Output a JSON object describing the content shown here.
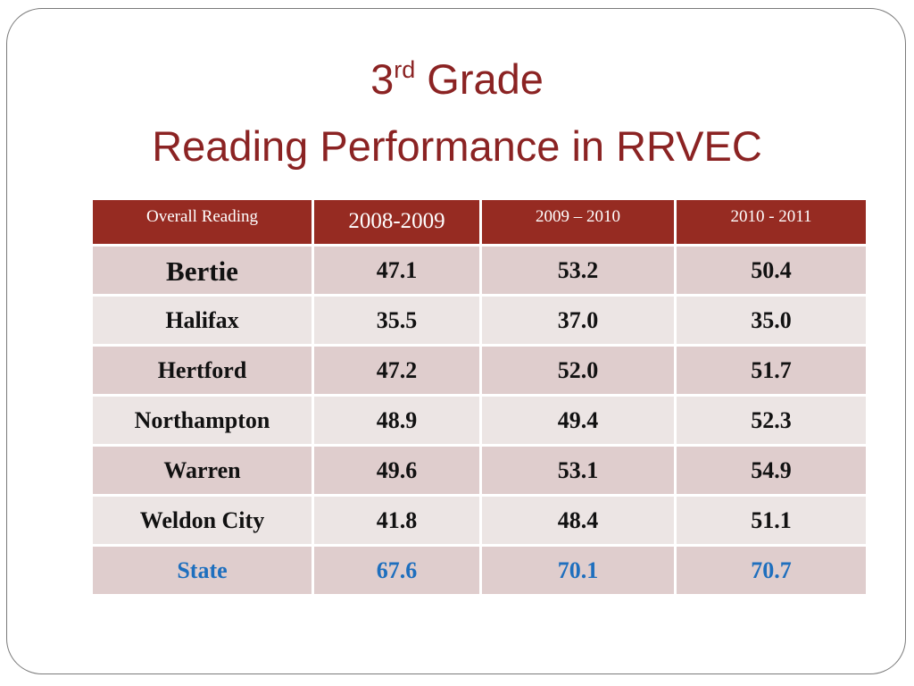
{
  "title": {
    "grade_number": "3",
    "grade_suffix": "rd",
    "grade_word": "Grade",
    "line2": "Reading Performance in RRVEC"
  },
  "table": {
    "headers": [
      "Overall Reading",
      "2008-2009",
      "2009 – 2010",
      "2010 - 2011"
    ],
    "rows": [
      {
        "name": "Bertie",
        "values": [
          "47.1",
          "53.2",
          "50.4"
        ]
      },
      {
        "name": "Halifax",
        "values": [
          "35.5",
          "37.0",
          "35.0"
        ]
      },
      {
        "name": "Hertford",
        "values": [
          "47.2",
          "52.0",
          "51.7"
        ]
      },
      {
        "name": "Northampton",
        "values": [
          "48.9",
          "49.4",
          "52.3"
        ]
      },
      {
        "name": "Warren",
        "values": [
          "49.6",
          "53.1",
          "54.9"
        ]
      },
      {
        "name": "Weldon City",
        "values": [
          "41.8",
          "48.4",
          "51.1"
        ]
      },
      {
        "name": "State",
        "values": [
          "67.6",
          "70.1",
          "70.7"
        ]
      }
    ]
  },
  "colors": {
    "title": "#8b2323",
    "header_bg": "#962b22",
    "row_dark": "#dfcdcd",
    "row_light": "#ece5e4",
    "state_text": "#1e6fbe"
  }
}
